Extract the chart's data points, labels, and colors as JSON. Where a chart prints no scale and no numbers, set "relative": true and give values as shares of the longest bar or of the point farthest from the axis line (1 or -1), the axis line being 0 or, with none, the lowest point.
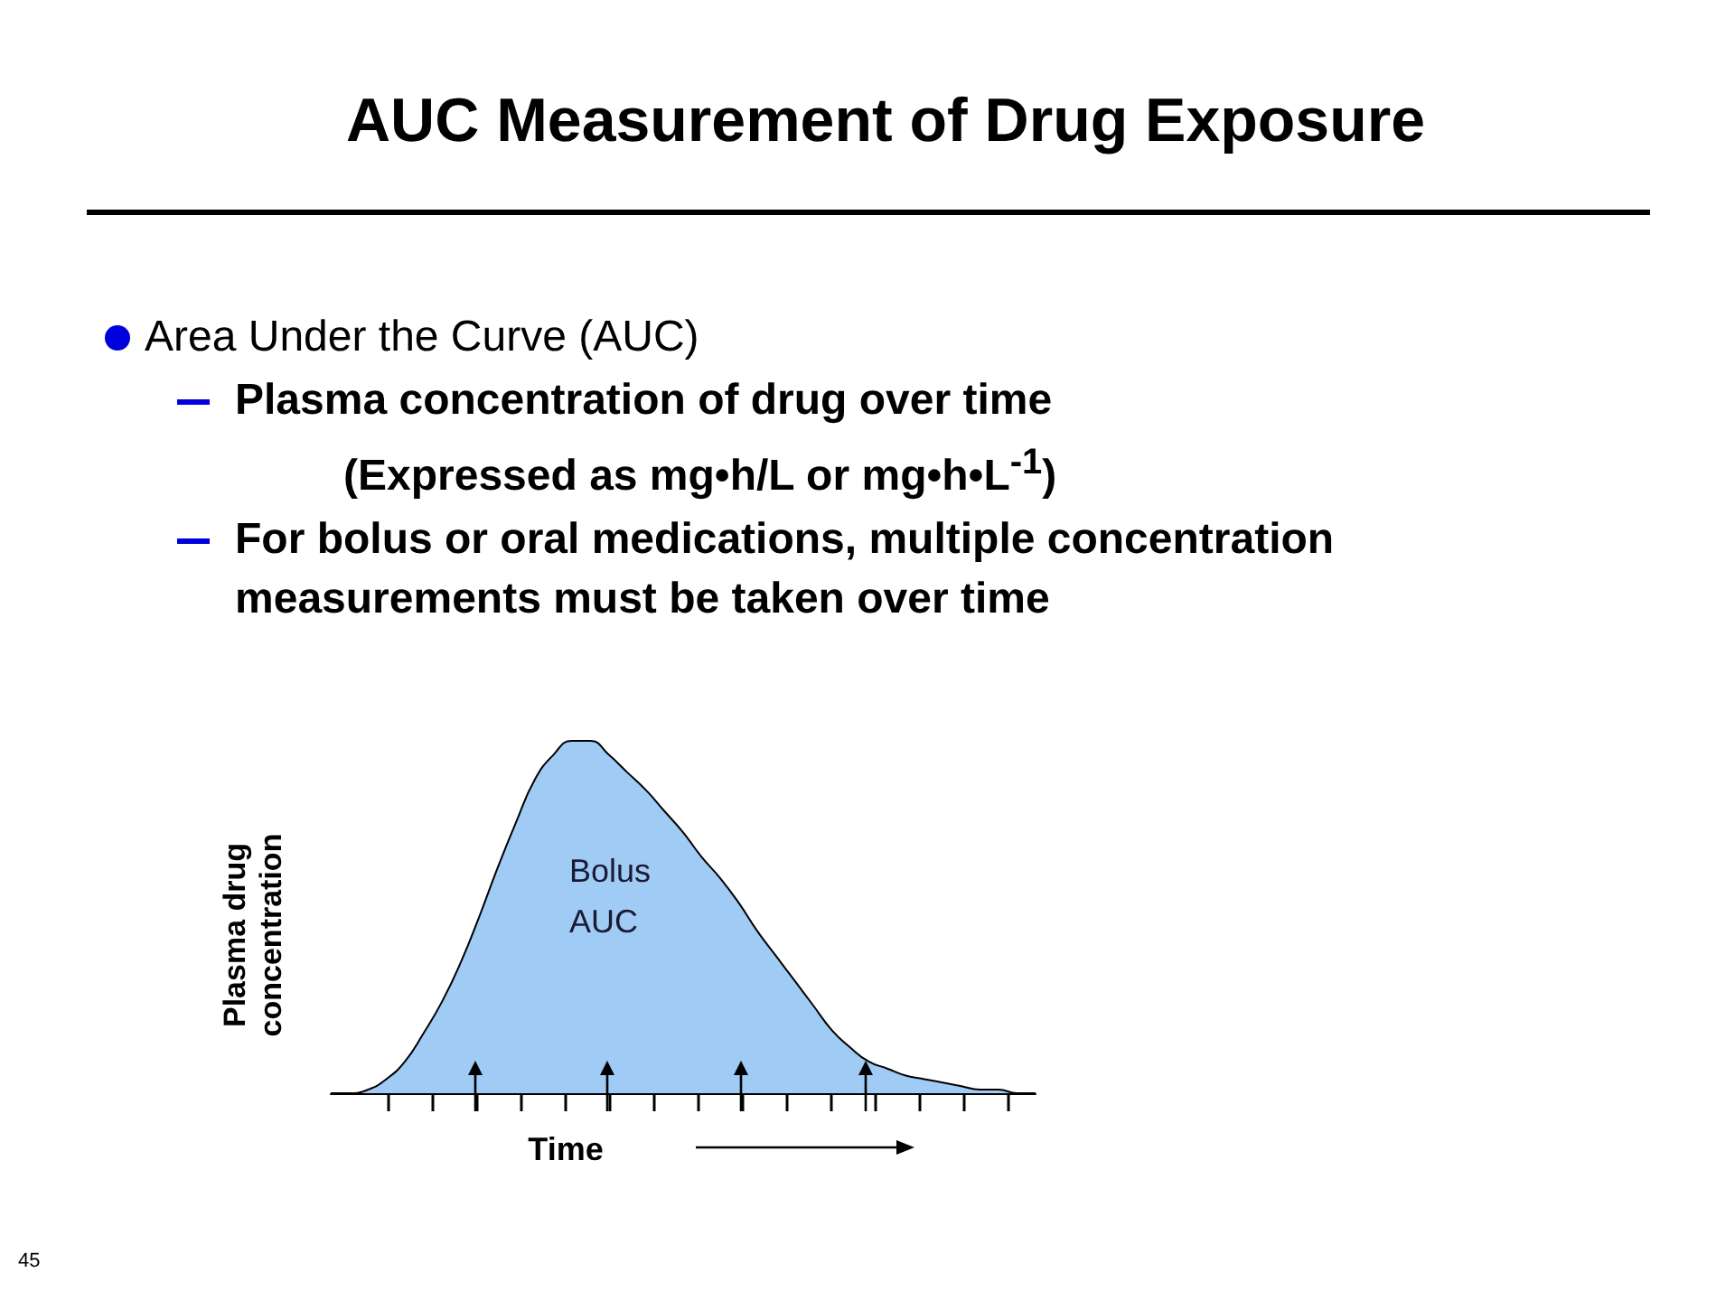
{
  "chart_data": {
    "type": "area",
    "title": "AUC Measurement of Drug Exposure",
    "relative": true,
    "color": "#9fcbf5",
    "xlabel": "Time",
    "ylabel": "Plasma drug concentration",
    "categories": [
      null,
      null,
      null,
      null,
      null,
      null,
      null,
      null,
      null,
      null,
      null,
      null,
      null,
      null,
      null,
      null,
      null,
      null,
      null,
      null,
      null,
      null,
      null,
      null,
      null,
      null,
      null,
      null,
      null,
      null,
      null,
      null,
      null,
      null,
      null,
      null,
      null,
      null,
      null
    ],
    "values": [
      0,
      0,
      0.01,
      0.04,
      0.09,
      0.17,
      0.26,
      0.37,
      0.5,
      0.64,
      0.77,
      0.89,
      0.96,
      1,
      1,
      0.96,
      0.91,
      0.86,
      0.8,
      0.74,
      0.67,
      0.61,
      0.54,
      0.46,
      0.39,
      0.32,
      0.25,
      0.18,
      0.13,
      0.09,
      0.07,
      0.05,
      0.04,
      0.03,
      0.02,
      0.01,
      0.01,
      0,
      0
    ],
    "annotations": [
      "Area Under the Curve (AUC)",
      "Plasma concentration of drug over time",
      "(Expressed as mg•h/L or mg•h•L$^{-1}$)",
      "For bolus or oral medications, multiple concentration measurements must be taken over time",
      "45",
      "Bolus AUC"
    ],
    "grid": false,
    "marker": "none"
  }
}
